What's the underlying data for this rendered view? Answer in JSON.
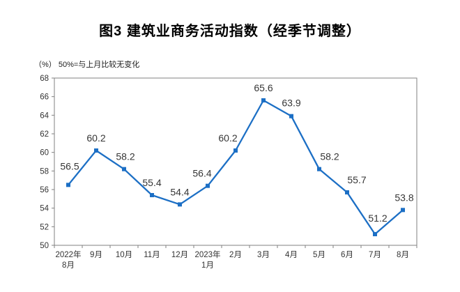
{
  "page": {
    "background": "#ffffff"
  },
  "chart_data": {
    "type": "line",
    "title": "图3  建筑业商务活动指数（经季节调整）",
    "unit_note": "（%） 50%=与上月比较无变化",
    "categories": [
      [
        "2022年",
        "8月"
      ],
      [
        "9月"
      ],
      [
        "10月"
      ],
      [
        "11月"
      ],
      [
        "12月"
      ],
      [
        "2023年",
        "1月"
      ],
      [
        "2月"
      ],
      [
        "3月"
      ],
      [
        "4月"
      ],
      [
        "5月"
      ],
      [
        "6月"
      ],
      [
        "7月"
      ],
      [
        "8月"
      ]
    ],
    "values": [
      56.5,
      60.2,
      58.2,
      55.4,
      54.4,
      56.4,
      60.2,
      65.6,
      63.9,
      58.2,
      55.7,
      51.2,
      53.8
    ],
    "ylim": [
      50,
      68
    ],
    "ytick_step": 2,
    "xlabel": "",
    "ylabel": "",
    "grid": false,
    "legend_position": "none",
    "marker": "square",
    "colors": {
      "line": "#1C6FC5",
      "axis": "#808080",
      "tick_text": "#333333",
      "data_label_text": "#363636"
    },
    "label_dx": [
      2,
      0,
      2,
      0,
      0,
      -8,
      -11,
      0,
      0,
      15,
      14,
      4,
      2
    ],
    "label_dy": [
      -22,
      -13,
      -13,
      -13,
      -13,
      -13,
      -13,
      -13,
      -14,
      -13,
      -13,
      -18,
      -13
    ]
  }
}
